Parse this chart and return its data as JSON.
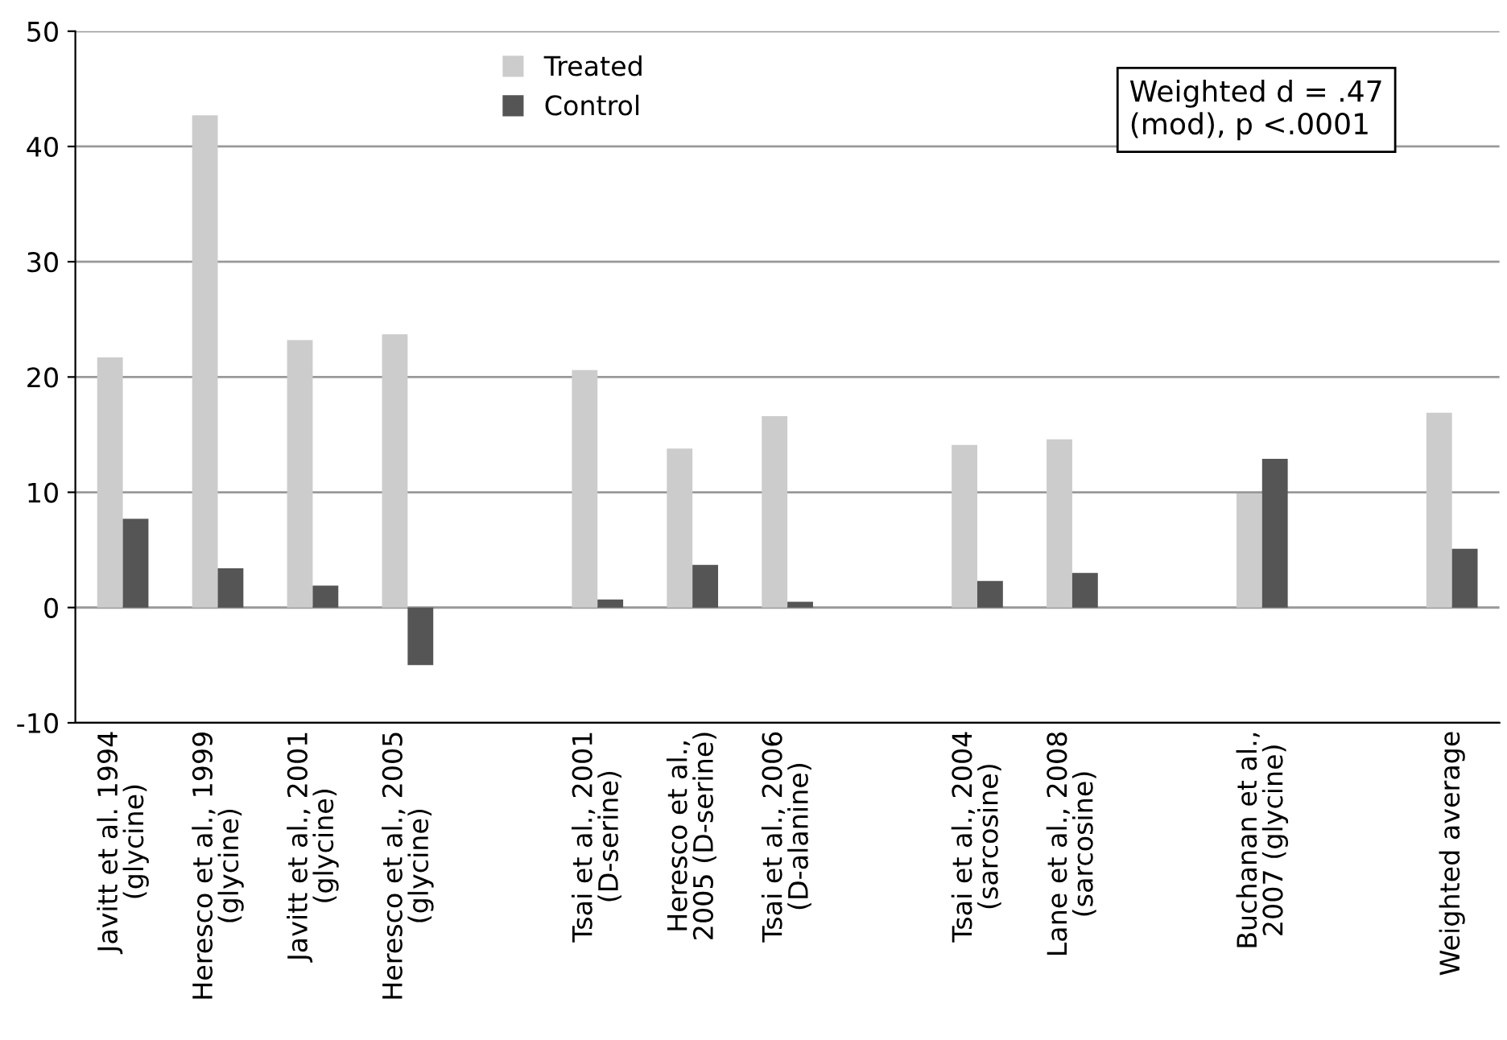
{
  "chart_data": {
    "type": "bar",
    "categories": [
      "Javitt et al. 1994\n(glycine)",
      "Heresco et al., 1999\n(glycine)",
      "Javitt et al., 2001\n(glycine)",
      "Heresco et al., 2005\n(glycine)",
      null,
      "Tsai et al., 2001\n(D-serine)",
      "Heresco et al.,\n2005 (D-serine)",
      "Tsai et al., 2006\n(D-alanine)",
      null,
      "Tsai et al., 2004\n(sarcosine)",
      "Lane et al., 2008\n(sarcosine)",
      null,
      "Buchanan et al.,\n2007 (glycine)",
      null,
      "Weighted average"
    ],
    "series": [
      {
        "name": "Treated",
        "color": "#cccccc",
        "values": [
          21.7,
          42.7,
          23.2,
          23.7,
          null,
          20.6,
          13.8,
          16.6,
          null,
          14.1,
          14.6,
          null,
          9.9,
          null,
          16.9
        ]
      },
      {
        "name": "Control",
        "color": "#555555",
        "values": [
          7.7,
          3.4,
          1.9,
          -5.0,
          null,
          0.7,
          3.7,
          0.5,
          null,
          2.3,
          3.0,
          null,
          12.9,
          null,
          5.1
        ]
      }
    ],
    "ylim": [
      -10,
      50
    ],
    "yticks": [
      -10,
      0,
      10,
      20,
      30,
      40,
      50
    ],
    "grid": "y",
    "legend": "top",
    "annotations": [
      "Weighted d = .47\n(mod), p <.0001"
    ]
  }
}
